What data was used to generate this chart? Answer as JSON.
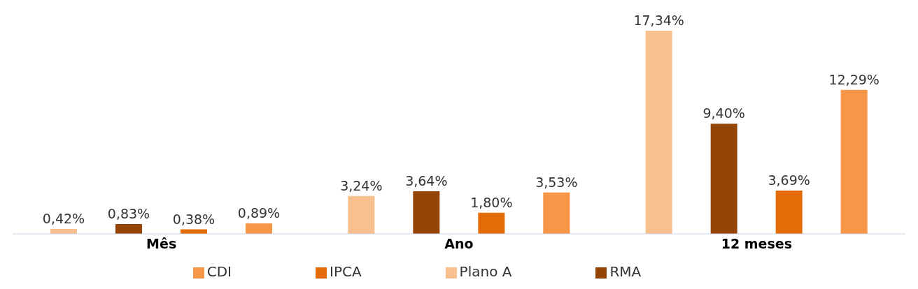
{
  "chart_data": {
    "type": "bar",
    "categories": [
      "Mês",
      "Ano",
      "12 meses"
    ],
    "legend": "bottom",
    "series": [
      {
        "name": "Plano A",
        "color": "#f9c08f",
        "values": [
          0.42,
          3.24,
          17.34
        ],
        "value_labels": [
          "0,42%",
          "3,24%",
          "17,34%"
        ]
      },
      {
        "name": "RMA",
        "color": "#944505",
        "values": [
          0.83,
          3.64,
          9.4
        ],
        "value_labels": [
          "0,83%",
          "3,64%",
          "9,40%"
        ]
      },
      {
        "name": "IPCA",
        "color": "#e36c09",
        "values": [
          0.38,
          1.8,
          3.69
        ],
        "value_labels": [
          "0,38%",
          "1,80%",
          "3,69%"
        ]
      },
      {
        "name": "CDI",
        "color": "#f79646",
        "values": [
          0.89,
          3.53,
          12.29
        ],
        "value_labels": [
          "0,89%",
          "3,53%",
          "12,29%"
        ]
      }
    ]
  }
}
